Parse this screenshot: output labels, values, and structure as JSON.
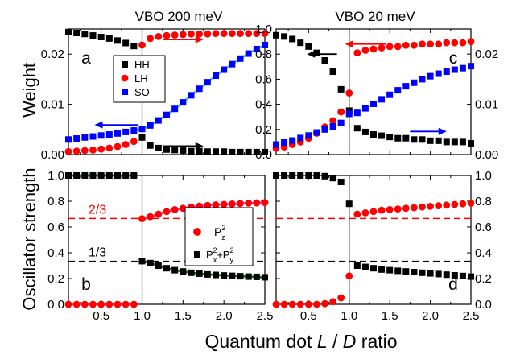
{
  "figure": {
    "col_titles": [
      "VBO 200 meV",
      "VBO 20 meV"
    ],
    "ylabel_top": "Weight",
    "ylabel_bottom": "Oscillator strength",
    "xlabel": {
      "prefix": "Quantum dot ",
      "italic1": "L",
      "sep": " / ",
      "italic2": "D",
      "suffix": " ratio"
    }
  },
  "colors": {
    "HH": "#000000",
    "LH": "#ff0000",
    "SO": "#0000ff",
    "fit_cyan": "#33ccff",
    "fit_green": "#008000",
    "fit_magenta": "#ff33cc",
    "ref_red": "#ff0000",
    "ref_black": "#000000"
  },
  "chart_data": [
    {
      "id": "a",
      "type": "scatter",
      "panel_label": "a",
      "xlim": [
        0.1,
        2.5
      ],
      "ylim": [
        0,
        0.025
      ],
      "x_ticks": [
        0.5,
        1.0,
        1.5,
        2.0,
        2.5
      ],
      "x_tick_labels": [
        "0.5",
        "1.0",
        "1.5",
        "2.0",
        "2.5"
      ],
      "show_x_tick_labels": false,
      "y_ticks": [
        0.0,
        0.01,
        0.02
      ],
      "y_tick_labels": [
        "0.00",
        "0.01",
        "0.02"
      ],
      "y_tick_side": "left",
      "vline": 1.0,
      "legend": {
        "placement": "center",
        "entries": [
          {
            "label": "HH",
            "marker": "square",
            "color": "#000000"
          },
          {
            "label": "LH",
            "marker": "circle",
            "color": "#ff0000"
          },
          {
            "label": "SO",
            "marker": "square",
            "color": "#0000ff"
          }
        ]
      },
      "series": [
        {
          "name": "HH",
          "marker": "square",
          "color": "#000000",
          "x": [
            0.1,
            0.2,
            0.3,
            0.4,
            0.5,
            0.6,
            0.7,
            0.8,
            0.9,
            1.0,
            1.1,
            1.2,
            1.3,
            1.4,
            1.5,
            1.6,
            1.7,
            1.8,
            1.9,
            2.0,
            2.1,
            2.2,
            2.3,
            2.4,
            2.5
          ],
          "y": [
            0.0244,
            0.0242,
            0.024,
            0.0237,
            0.0234,
            0.0231,
            0.0227,
            0.0222,
            0.0216,
            0.0034,
            0.0018,
            0.0013,
            0.001,
            0.0009,
            0.0008,
            0.0007,
            0.0007,
            0.0006,
            0.0006,
            0.0006,
            0.0005,
            0.0005,
            0.0005,
            0.0005,
            0.0005
          ]
        },
        {
          "name": "LH",
          "marker": "circle",
          "color": "#ff0000",
          "x": [
            0.1,
            0.2,
            0.3,
            0.4,
            0.5,
            0.6,
            0.7,
            0.8,
            0.9,
            1.0,
            1.1,
            1.2,
            1.3,
            1.4,
            1.5,
            1.6,
            1.7,
            1.8,
            1.9,
            2.0,
            2.1,
            2.2,
            2.3,
            2.4,
            2.5
          ],
          "y": [
            0.0006,
            0.0007,
            0.0008,
            0.0009,
            0.0011,
            0.0013,
            0.0016,
            0.002,
            0.0026,
            0.0218,
            0.0231,
            0.0235,
            0.0237,
            0.0238,
            0.0239,
            0.024,
            0.024,
            0.024,
            0.0241,
            0.0241,
            0.0241,
            0.0241,
            0.0241,
            0.0241,
            0.0241
          ]
        },
        {
          "name": "SO",
          "marker": "square",
          "color": "#0000ff",
          "x": [
            0.1,
            0.2,
            0.3,
            0.4,
            0.5,
            0.6,
            0.7,
            0.8,
            0.9,
            1.0,
            1.1,
            1.2,
            1.3,
            1.4,
            1.5,
            1.6,
            1.7,
            1.8,
            1.9,
            2.0,
            2.1,
            2.2,
            2.3,
            2.4,
            2.5
          ],
          "y": [
            0.003,
            0.0032,
            0.0034,
            0.0036,
            0.0038,
            0.004,
            0.0042,
            0.0045,
            0.0048,
            0.0051,
            0.0058,
            0.0068,
            0.0079,
            0.0091,
            0.0104,
            0.0118,
            0.0131,
            0.0144,
            0.0157,
            0.0169,
            0.018,
            0.0191,
            0.0201,
            0.021,
            0.0218
          ]
        }
      ],
      "fit_lines": [
        {
          "color": "#33ccff",
          "x": [
            0.9,
            1.0,
            1.1,
            1.2,
            1.3,
            1.4,
            1.5,
            1.6,
            1.7,
            1.8,
            1.9,
            2.0,
            2.1,
            2.2,
            2.3,
            2.4,
            2.5
          ],
          "y": [
            0.0048,
            0.0051,
            0.0058,
            0.0068,
            0.0079,
            0.0091,
            0.0104,
            0.0118,
            0.0131,
            0.0144,
            0.0157,
            0.0169,
            0.018,
            0.0191,
            0.0201,
            0.021,
            0.0218
          ]
        }
      ],
      "arrows": [
        {
          "color": "#ff0000",
          "x": [
            1.25,
            1.75
          ],
          "y": 0.0229,
          "head": "right"
        },
        {
          "color": "#0000ff",
          "x": [
            0.95,
            0.42
          ],
          "y": 0.0059,
          "head": "left"
        },
        {
          "color": "#000000",
          "x": [
            1.25,
            1.75
          ],
          "y": 0.0017,
          "head": "right"
        }
      ]
    },
    {
      "id": "c",
      "type": "scatter",
      "panel_label": "c",
      "xlim": [
        0.1,
        2.5
      ],
      "ylim": [
        0,
        1.0
      ],
      "y2lim": [
        0,
        0.025
      ],
      "x_ticks": [
        0.5,
        1.0,
        1.5,
        2.0,
        2.5
      ],
      "x_tick_labels": [
        "0.5",
        "1.0",
        "1.5",
        "2.0",
        "2.5"
      ],
      "show_x_tick_labels": false,
      "y_ticks": [
        0.0,
        0.2,
        0.4,
        0.6,
        0.8,
        1.0
      ],
      "y_tick_labels": [
        "0.0",
        "0.2",
        "0.4",
        "0.6",
        "0.8",
        "1.0"
      ],
      "y2_ticks": [
        0.0,
        0.01,
        0.02
      ],
      "y2_tick_labels": [
        "0.00",
        "0.01",
        "0.02"
      ],
      "vline": 1.0,
      "series": [
        {
          "name": "HH",
          "marker": "square",
          "color": "#000000",
          "axis": "left",
          "x": [
            0.1,
            0.2,
            0.3,
            0.4,
            0.5,
            0.6,
            0.7,
            0.8,
            0.9,
            1.0,
            1.1,
            1.2,
            1.3,
            1.4,
            1.5,
            1.6,
            1.7,
            1.8,
            1.9,
            2.0,
            2.1,
            2.2,
            2.3,
            2.4,
            2.5
          ],
          "y": [
            0.95,
            0.94,
            0.92,
            0.89,
            0.86,
            0.81,
            0.75,
            0.66,
            0.52,
            0.35,
            0.21,
            0.18,
            0.16,
            0.15,
            0.14,
            0.13,
            0.13,
            0.12,
            0.12,
            0.11,
            0.11,
            0.1,
            0.1,
            0.1,
            0.09
          ]
        },
        {
          "name": "LH",
          "marker": "circle",
          "color": "#ff0000",
          "axis": "left",
          "x": [
            0.1,
            0.2,
            0.3,
            0.4,
            0.5,
            0.6,
            0.7,
            0.8,
            0.9,
            1.0,
            1.1,
            1.2,
            1.3,
            1.4,
            1.5,
            1.6,
            1.7,
            1.8,
            1.9,
            2.0,
            2.1,
            2.2,
            2.3,
            2.4,
            2.5
          ],
          "y": [
            0.05,
            0.06,
            0.08,
            0.1,
            0.13,
            0.17,
            0.22,
            0.27,
            0.34,
            0.49,
            0.81,
            0.83,
            0.84,
            0.85,
            0.86,
            0.86,
            0.87,
            0.87,
            0.88,
            0.88,
            0.88,
            0.89,
            0.89,
            0.89,
            0.9
          ]
        },
        {
          "name": "SO",
          "marker": "square",
          "color": "#0000ff",
          "axis": "right",
          "x": [
            0.1,
            0.2,
            0.3,
            0.4,
            0.5,
            0.6,
            0.7,
            0.8,
            0.9,
            1.0,
            1.1,
            1.2,
            1.3,
            1.4,
            1.5,
            1.6,
            1.7,
            1.8,
            1.9,
            2.0,
            2.1,
            2.2,
            2.3,
            2.4,
            2.5
          ],
          "y": [
            0.002,
            0.0024,
            0.0028,
            0.0033,
            0.0038,
            0.0044,
            0.005,
            0.0056,
            0.0063,
            0.0081,
            0.0083,
            0.0092,
            0.0101,
            0.011,
            0.0119,
            0.0128,
            0.0136,
            0.0143,
            0.015,
            0.0156,
            0.0161,
            0.0165,
            0.0169,
            0.0172,
            0.0176
          ]
        }
      ],
      "arrows": [
        {
          "color": "#000000",
          "axis": "left",
          "x": [
            0.85,
            0.48
          ],
          "y": 0.8,
          "head": "left"
        },
        {
          "color": "#ff0000",
          "axis": "left",
          "x": [
            1.45,
            0.95
          ],
          "y": 0.88,
          "head": "left"
        },
        {
          "color": "#0000ff",
          "axis": "right",
          "x": [
            1.75,
            2.2
          ],
          "y": 0.0046,
          "head": "right"
        }
      ]
    },
    {
      "id": "b",
      "type": "scatter",
      "panel_label": "b",
      "xlim": [
        0.1,
        2.5
      ],
      "ylim": [
        0,
        1.0
      ],
      "x_ticks": [
        0.5,
        1.0,
        1.5,
        2.0,
        2.5
      ],
      "x_tick_labels": [
        "0.5",
        "1.0",
        "1.5",
        "2.0",
        "2.5"
      ],
      "show_x_tick_labels": true,
      "y_ticks": [
        0.0,
        0.2,
        0.4,
        0.6,
        0.8,
        1.0
      ],
      "y_tick_labels": [
        "0.0",
        "0.2",
        "0.4",
        "0.6",
        "0.8",
        "1.0"
      ],
      "y_tick_side": "left",
      "vline": 1.0,
      "ref_lines": [
        {
          "y": 0.6667,
          "color": "#ff0000",
          "label": "2/3",
          "dashed": true
        },
        {
          "y": 0.3333,
          "color": "#000000",
          "label": "1/3",
          "dashed": true
        }
      ],
      "legend": {
        "placement": "center-right",
        "entries": [
          {
            "label_base": "P",
            "label_sup": "2",
            "label_sub": "z",
            "marker": "circle",
            "color": "#ff0000"
          },
          {
            "label_parts": [
              "P",
              "2",
              "x",
              "+P",
              "2",
              "y"
            ],
            "marker": "square",
            "color": "#000000"
          }
        ]
      },
      "series": [
        {
          "name": "P_z^2",
          "marker": "circle",
          "color": "#ff0000",
          "x": [
            0.1,
            0.2,
            0.3,
            0.4,
            0.5,
            0.6,
            0.7,
            0.8,
            0.9,
            1.0,
            1.1,
            1.2,
            1.3,
            1.4,
            1.5,
            1.6,
            1.7,
            1.8,
            1.9,
            2.0,
            2.1,
            2.2,
            2.3,
            2.4,
            2.5
          ],
          "y": [
            0.0,
            0.0,
            0.0,
            0.0,
            0.0,
            0.0,
            0.0,
            0.0,
            0.0,
            0.665,
            0.68,
            0.7,
            0.72,
            0.735,
            0.745,
            0.755,
            0.762,
            0.768,
            0.772,
            0.776,
            0.779,
            0.782,
            0.785,
            0.787,
            0.79
          ]
        },
        {
          "name": "P_x^2+P_y^2",
          "marker": "square",
          "color": "#000000",
          "x": [
            0.1,
            0.2,
            0.3,
            0.4,
            0.5,
            0.6,
            0.7,
            0.8,
            0.9,
            1.0,
            1.1,
            1.2,
            1.3,
            1.4,
            1.5,
            1.6,
            1.7,
            1.8,
            1.9,
            2.0,
            2.1,
            2.2,
            2.3,
            2.4,
            2.5
          ],
          "y": [
            1.0,
            1.0,
            1.0,
            1.0,
            1.0,
            1.0,
            1.0,
            1.0,
            1.0,
            0.335,
            0.32,
            0.3,
            0.28,
            0.265,
            0.255,
            0.245,
            0.238,
            0.232,
            0.228,
            0.224,
            0.221,
            0.218,
            0.215,
            0.213,
            0.21
          ]
        }
      ],
      "fit_lines": [
        {
          "color": "#ff33cc",
          "x": [
            0.1,
            0.95
          ],
          "y": [
            0.0,
            0.0
          ]
        },
        {
          "color": "#ff33cc",
          "x": [
            1.0,
            1.1,
            1.2,
            1.3,
            1.4,
            1.5,
            1.6,
            1.7,
            1.8,
            1.9,
            2.0,
            2.1,
            2.2,
            2.3,
            2.4,
            2.5
          ],
          "y": [
            0.665,
            0.68,
            0.7,
            0.72,
            0.735,
            0.745,
            0.755,
            0.762,
            0.768,
            0.772,
            0.776,
            0.779,
            0.782,
            0.785,
            0.787,
            0.79
          ]
        },
        {
          "color": "#008000",
          "x": [
            0.1,
            0.95
          ],
          "y": [
            1.0,
            1.0
          ]
        },
        {
          "color": "#008000",
          "x": [
            1.0,
            1.1,
            1.2,
            1.3,
            1.4,
            1.5,
            1.6,
            1.7,
            1.8,
            1.9,
            2.0,
            2.1,
            2.2,
            2.3,
            2.4,
            2.5
          ],
          "y": [
            0.335,
            0.32,
            0.3,
            0.28,
            0.265,
            0.255,
            0.245,
            0.238,
            0.232,
            0.228,
            0.224,
            0.221,
            0.218,
            0.215,
            0.213,
            0.21
          ]
        }
      ]
    },
    {
      "id": "d",
      "type": "scatter",
      "panel_label": "d",
      "xlim": [
        0.1,
        2.5
      ],
      "ylim": [
        0,
        1.0
      ],
      "x_ticks": [
        0.5,
        1.0,
        1.5,
        2.0,
        2.5
      ],
      "x_tick_labels": [
        "0.5",
        "1.0",
        "1.5",
        "2.0",
        "2.5"
      ],
      "show_x_tick_labels": true,
      "y_ticks": [
        0.0,
        0.2,
        0.4,
        0.6,
        0.8,
        1.0
      ],
      "y_tick_labels": [
        "0.0",
        "0.2",
        "0.4",
        "0.6",
        "0.8",
        "1.0"
      ],
      "y_tick_side": "right",
      "vline": 1.0,
      "ref_lines": [
        {
          "y": 0.6667,
          "color": "#ff0000",
          "dashed": true
        },
        {
          "y": 0.3333,
          "color": "#000000",
          "dashed": true
        }
      ],
      "series": [
        {
          "name": "P_z^2",
          "marker": "circle",
          "color": "#ff0000",
          "x": [
            0.1,
            0.2,
            0.3,
            0.4,
            0.5,
            0.6,
            0.7,
            0.8,
            0.9,
            1.0,
            1.1,
            1.2,
            1.3,
            1.4,
            1.5,
            1.6,
            1.7,
            1.8,
            1.9,
            2.0,
            2.1,
            2.2,
            2.3,
            2.4,
            2.5
          ],
          "y": [
            0.0,
            0.0,
            0.0,
            0.0,
            0.0,
            0.0,
            0.005,
            0.02,
            0.05,
            0.22,
            0.7,
            0.71,
            0.72,
            0.73,
            0.735,
            0.74,
            0.745,
            0.75,
            0.755,
            0.76,
            0.765,
            0.77,
            0.775,
            0.78,
            0.785
          ]
        },
        {
          "name": "P_x^2+P_y^2",
          "marker": "square",
          "color": "#000000",
          "x": [
            0.1,
            0.2,
            0.3,
            0.4,
            0.5,
            0.6,
            0.7,
            0.8,
            0.9,
            1.0,
            1.1,
            1.2,
            1.3,
            1.4,
            1.5,
            1.6,
            1.7,
            1.8,
            1.9,
            2.0,
            2.1,
            2.2,
            2.3,
            2.4,
            2.5
          ],
          "y": [
            1.0,
            1.0,
            1.0,
            1.0,
            1.0,
            1.0,
            0.995,
            0.98,
            0.95,
            0.78,
            0.3,
            0.29,
            0.28,
            0.27,
            0.265,
            0.26,
            0.255,
            0.25,
            0.245,
            0.24,
            0.235,
            0.23,
            0.225,
            0.22,
            0.215
          ]
        }
      ]
    }
  ]
}
